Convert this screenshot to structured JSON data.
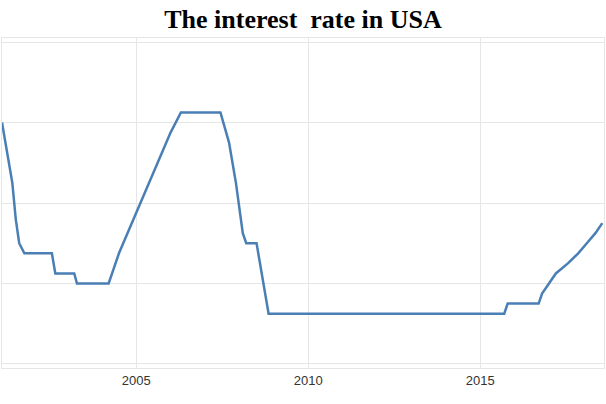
{
  "chart_data": {
    "type": "line",
    "title": "The interest  rate in USA",
    "color": "#4a7fb5",
    "x": [
      2001.1,
      2001.2,
      2001.3,
      2001.4,
      2001.5,
      2001.6,
      2001.75,
      2002.55,
      2002.65,
      2003.2,
      2003.28,
      2004.2,
      2004.5,
      2004.75,
      2005.0,
      2005.25,
      2005.5,
      2005.75,
      2006.0,
      2006.3,
      2007.45,
      2007.7,
      2007.9,
      2008.1,
      2008.2,
      2008.5,
      2008.7,
      2008.85,
      2015.7,
      2015.8,
      2016.7,
      2016.8,
      2017.0,
      2017.2,
      2017.55,
      2017.85,
      2018.1,
      2018.35,
      2018.55
    ],
    "values": [
      5.0,
      4.5,
      4.0,
      3.5,
      2.6,
      2.0,
      1.75,
      1.75,
      1.25,
      1.25,
      1.0,
      1.0,
      1.75,
      2.25,
      2.75,
      3.25,
      3.75,
      4.25,
      4.75,
      5.25,
      5.25,
      4.5,
      3.5,
      2.25,
      2.0,
      2.0,
      1.0,
      0.25,
      0.25,
      0.5,
      0.5,
      0.75,
      1.0,
      1.25,
      1.5,
      1.75,
      2.0,
      2.25,
      2.5
    ],
    "xlim": [
      2001.1,
      2018.6
    ],
    "xticks": [
      2005,
      2010,
      2015
    ],
    "ylim": [
      -1.1,
      7.1
    ],
    "yticks": [
      -1,
      1,
      3,
      5,
      7
    ],
    "grid": true,
    "tick_labels": "x"
  }
}
